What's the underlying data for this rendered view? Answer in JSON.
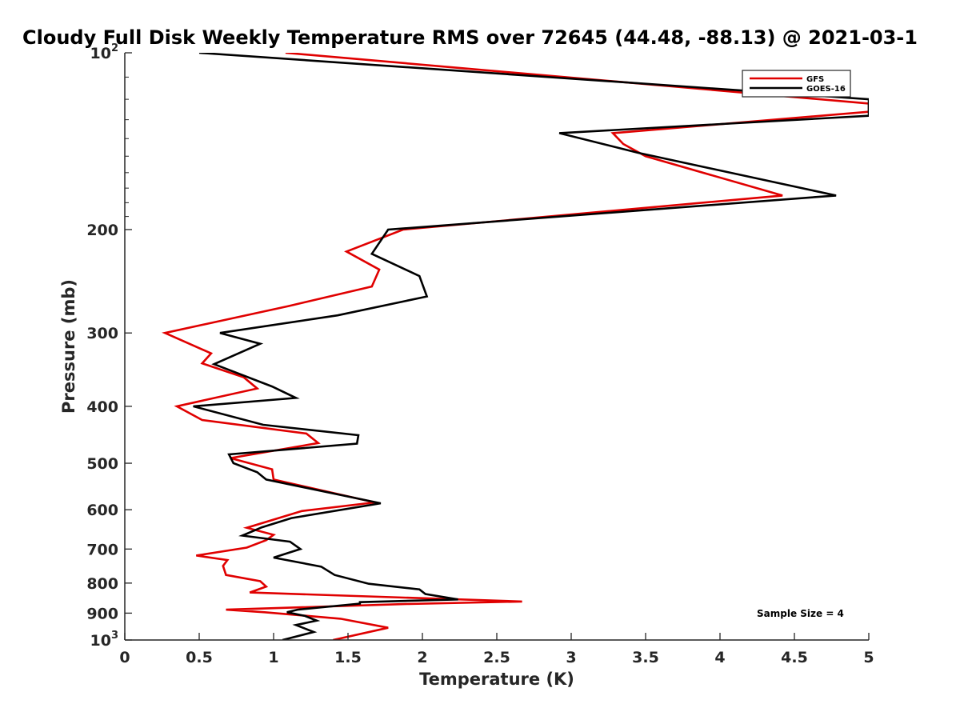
{
  "chart_data": {
    "type": "line",
    "title": "Cloudy Full Disk Weekly Temperature RMS over 72645 (44.48, -88.13) @ 2021-03-1",
    "xlabel": "Temperature (K)",
    "ylabel": "Pressure (mb)",
    "xlim": [
      0,
      5
    ],
    "ylim": [
      100,
      1000
    ],
    "y_scale": "log",
    "y_reversed": true,
    "grid": false,
    "legend_position": "top-right",
    "x_ticks": [
      "0",
      "0.5",
      "1",
      "1.5",
      "2",
      "2.5",
      "3",
      "3.5",
      "4",
      "4.5",
      "5"
    ],
    "y_ticks": [
      {
        "value": 100,
        "label": "10",
        "sup": "2"
      },
      {
        "value": 200,
        "label": "200",
        "sup": ""
      },
      {
        "value": 300,
        "label": "300",
        "sup": ""
      },
      {
        "value": 400,
        "label": "400",
        "sup": ""
      },
      {
        "value": 500,
        "label": "500",
        "sup": ""
      },
      {
        "value": 600,
        "label": "600",
        "sup": ""
      },
      {
        "value": 700,
        "label": "700",
        "sup": ""
      },
      {
        "value": 800,
        "label": "800",
        "sup": ""
      },
      {
        "value": 900,
        "label": "900",
        "sup": ""
      },
      {
        "value": 1000,
        "label": "10",
        "sup": "3"
      }
    ],
    "annotation": "Sample Size = 4",
    "series": [
      {
        "name": "GFS",
        "color": "#e00000",
        "points": [
          [
            1.08,
            100
          ],
          [
            5.0,
            122
          ],
          [
            5.0,
            126
          ],
          [
            3.28,
            137
          ],
          [
            3.35,
            143
          ],
          [
            3.5,
            150
          ],
          [
            4.42,
            175
          ],
          [
            1.87,
            200
          ],
          [
            1.49,
            218
          ],
          [
            1.71,
            234
          ],
          [
            1.66,
            250
          ],
          [
            1.1,
            270
          ],
          [
            0.27,
            300
          ],
          [
            0.58,
            325
          ],
          [
            0.52,
            338
          ],
          [
            0.8,
            357
          ],
          [
            0.89,
            373
          ],
          [
            0.35,
            400
          ],
          [
            0.52,
            422
          ],
          [
            1.22,
            445
          ],
          [
            1.3,
            462
          ],
          [
            0.71,
            490
          ],
          [
            0.99,
            512
          ],
          [
            1.0,
            533
          ],
          [
            1.68,
            583
          ],
          [
            1.19,
            603
          ],
          [
            0.82,
            644
          ],
          [
            1.0,
            662
          ],
          [
            0.95,
            676
          ],
          [
            0.82,
            696
          ],
          [
            0.48,
            718
          ],
          [
            0.69,
            731
          ],
          [
            0.66,
            748
          ],
          [
            0.68,
            775
          ],
          [
            0.91,
            794
          ],
          [
            0.95,
            811
          ],
          [
            0.84,
            830
          ],
          [
            2.67,
            860
          ],
          [
            1.91,
            868
          ],
          [
            0.68,
            888
          ],
          [
            0.94,
            897
          ],
          [
            1.45,
            920
          ],
          [
            1.77,
            953
          ],
          [
            1.4,
            1000
          ]
        ]
      },
      {
        "name": "GOES-16",
        "color": "#000000",
        "points": [
          [
            0.5,
            100
          ],
          [
            5.0,
            120
          ],
          [
            5.0,
            128
          ],
          [
            2.92,
            137
          ],
          [
            3.45,
            148
          ],
          [
            4.78,
            175
          ],
          [
            1.77,
            200
          ],
          [
            1.66,
            220
          ],
          [
            1.98,
            240
          ],
          [
            2.03,
            260
          ],
          [
            1.43,
            280
          ],
          [
            0.64,
            300
          ],
          [
            0.91,
            313
          ],
          [
            0.6,
            339
          ],
          [
            0.99,
            370
          ],
          [
            1.15,
            387
          ],
          [
            0.46,
            400
          ],
          [
            0.93,
            430
          ],
          [
            1.57,
            448
          ],
          [
            1.56,
            463
          ],
          [
            0.7,
            483
          ],
          [
            0.73,
            500
          ],
          [
            0.89,
            518
          ],
          [
            0.95,
            533
          ],
          [
            1.72,
            585
          ],
          [
            1.12,
            620
          ],
          [
            0.92,
            643
          ],
          [
            0.79,
            664
          ],
          [
            1.11,
            680
          ],
          [
            1.18,
            700
          ],
          [
            1.0,
            724
          ],
          [
            1.32,
            750
          ],
          [
            1.41,
            775
          ],
          [
            1.64,
            802
          ],
          [
            1.98,
            820
          ],
          [
            2.02,
            835
          ],
          [
            2.24,
            853
          ],
          [
            1.58,
            862
          ],
          [
            1.58,
            867
          ],
          [
            1.16,
            888
          ],
          [
            1.09,
            897
          ],
          [
            1.21,
            910
          ],
          [
            1.29,
            927
          ],
          [
            1.15,
            943
          ],
          [
            1.27,
            969
          ],
          [
            1.06,
            1000
          ]
        ]
      }
    ]
  }
}
